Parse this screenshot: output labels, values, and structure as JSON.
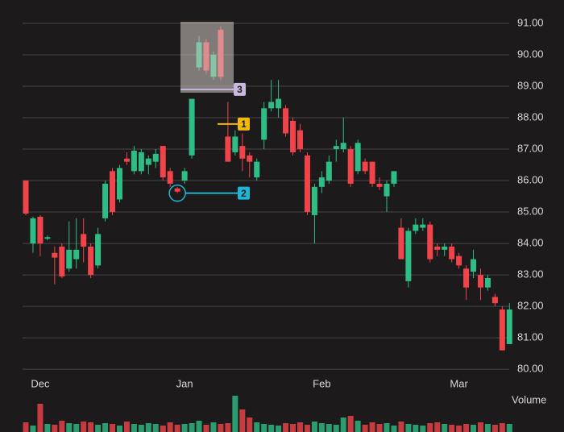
{
  "chart_data": {
    "type": "candlestick",
    "categories": [
      null,
      null,
      "Dec",
      null,
      null,
      null,
      null,
      null,
      null,
      null,
      null,
      null,
      null,
      null,
      null,
      null,
      null,
      null,
      null,
      null,
      null,
      null,
      "Jan",
      null,
      null,
      null,
      null,
      null,
      null,
      null,
      null,
      null,
      null,
      null,
      null,
      null,
      null,
      null,
      null,
      null,
      null,
      "Feb",
      null,
      null,
      null,
      null,
      null,
      null,
      null,
      null,
      null,
      null,
      null,
      null,
      null,
      null,
      null,
      null,
      null,
      null,
      "Mar",
      null,
      null,
      null,
      null,
      null,
      null,
      null
    ],
    "open": [
      86.0,
      84.0,
      84.85,
      84.15,
      83.7,
      83.9,
      83.2,
      83.5,
      84.3,
      83.9,
      83.3,
      84.8,
      86.3,
      85.4,
      86.7,
      86.3,
      86.3,
      86.5,
      86.6,
      87.1,
      86.3,
      85.75,
      86.0,
      86.8,
      89.6,
      90.4,
      89.3,
      90.8,
      87.4,
      86.9,
      87.1,
      86.8,
      86.1,
      87.3,
      88.3,
      88.3,
      88.3,
      87.9,
      87.6,
      86.8,
      84.9,
      85.8,
      86.0,
      87.0,
      87.0,
      87.0,
      86.3,
      86.6,
      86.6,
      85.9,
      85.5,
      85.9,
      84.5,
      82.8,
      84.4,
      84.5,
      84.6,
      83.9,
      83.8,
      83.9,
      83.6,
      83.2,
      83.1,
      83.0,
      82.6,
      82.3,
      81.9,
      80.8
    ],
    "high": [
      86.0,
      84.85,
      84.9,
      84.25,
      83.9,
      84.0,
      84.7,
      84.8,
      84.8,
      84.0,
      84.5,
      86.0,
      86.4,
      86.5,
      86.9,
      87.1,
      87.0,
      86.8,
      87.0,
      87.1,
      86.4,
      85.8,
      86.4,
      88.6,
      90.6,
      90.5,
      90.1,
      90.9,
      88.5,
      87.6,
      87.5,
      86.9,
      86.7,
      88.5,
      89.2,
      89.2,
      88.4,
      88.0,
      87.8,
      86.9,
      85.9,
      86.3,
      86.8,
      87.3,
      88.0,
      87.1,
      87.3,
      86.7,
      86.6,
      86.1,
      86.0,
      86.3,
      84.8,
      84.5,
      84.8,
      84.8,
      84.7,
      84.0,
      84.0,
      84.0,
      83.7,
      83.3,
      83.8,
      83.2,
      83.0,
      82.4,
      82.0,
      82.1
    ],
    "low": [
      84.9,
      83.7,
      83.6,
      84.1,
      82.7,
      82.9,
      83.1,
      83.2,
      83.4,
      82.9,
      83.2,
      84.7,
      84.9,
      85.3,
      86.5,
      86.2,
      86.2,
      86.2,
      86.4,
      86.0,
      85.8,
      85.6,
      85.9,
      86.7,
      89.5,
      89.4,
      89.2,
      89.2,
      86.6,
      86.8,
      86.3,
      86.1,
      86.0,
      87.0,
      88.2,
      88.0,
      87.4,
      86.8,
      86.9,
      84.9,
      84.0,
      85.6,
      85.9,
      86.6,
      86.9,
      85.8,
      86.2,
      86.2,
      85.8,
      85.7,
      85.0,
      85.8,
      83.5,
      82.6,
      84.3,
      84.4,
      83.4,
      83.6,
      83.6,
      83.4,
      83.2,
      82.2,
      82.9,
      82.2,
      82.5,
      82.0,
      80.6,
      80.8
    ],
    "close": [
      84.95,
      84.8,
      84.0,
      84.2,
      83.55,
      82.95,
      83.8,
      83.8,
      83.9,
      83.0,
      84.3,
      85.9,
      85.0,
      86.4,
      86.6,
      86.95,
      86.9,
      86.7,
      86.85,
      86.1,
      85.9,
      85.65,
      86.3,
      88.6,
      90.4,
      89.5,
      90.0,
      89.3,
      86.6,
      87.4,
      86.7,
      86.6,
      86.6,
      88.3,
      88.5,
      88.6,
      87.5,
      86.9,
      87.0,
      85.0,
      85.8,
      86.1,
      86.6,
      87.1,
      87.2,
      85.9,
      87.2,
      86.3,
      85.9,
      85.8,
      85.9,
      86.3,
      83.5,
      84.4,
      84.6,
      84.6,
      83.5,
      83.8,
      83.9,
      83.5,
      83.3,
      82.6,
      83.5,
      82.6,
      82.9,
      82.1,
      80.6,
      81.9
    ],
    "volume_label": "Volume",
    "volume": [
      12,
      8,
      35,
      10,
      9,
      14,
      11,
      10,
      13,
      12,
      9,
      11,
      10,
      8,
      13,
      10,
      9,
      11,
      10,
      8,
      12,
      9,
      10,
      11,
      14,
      9,
      12,
      10,
      11,
      45,
      28,
      18,
      12,
      10,
      9,
      8,
      11,
      10,
      12,
      9,
      13,
      11,
      10,
      9,
      18,
      20,
      14,
      9,
      12,
      10,
      11,
      8,
      13,
      10,
      9,
      8,
      11,
      12,
      10,
      9,
      8,
      10,
      9,
      12,
      10,
      9,
      11,
      10
    ],
    "up_color": "#2ebd85",
    "down_color": "#f0444a",
    "ylim": [
      79.9,
      91.5
    ],
    "yticks": [
      {
        "value": 80,
        "label": "80.00"
      },
      {
        "value": 81,
        "label": "81.00"
      },
      {
        "value": 82,
        "label": "82.00"
      },
      {
        "value": 83,
        "label": "83.00"
      },
      {
        "value": 84,
        "label": "84.00"
      },
      {
        "value": 85,
        "label": "85.00"
      },
      {
        "value": 86,
        "label": "86.00"
      },
      {
        "value": 87,
        "label": "87.00"
      },
      {
        "value": 88,
        "label": "88.00"
      },
      {
        "value": 89,
        "label": "89.00"
      },
      {
        "value": 90,
        "label": "90.00"
      },
      {
        "value": 91,
        "label": "91.00"
      }
    ],
    "grid": true,
    "annotations": [
      {
        "label": "1",
        "value": 87.8,
        "color": "#f0b90b"
      },
      {
        "label": "2",
        "value": 85.6,
        "color": "#1fb6d6"
      },
      {
        "label": "3",
        "value": 88.9,
        "color": "#c7b8e0"
      }
    ]
  }
}
